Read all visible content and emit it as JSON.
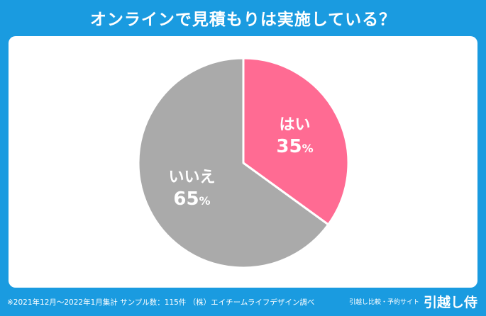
{
  "header": {
    "title": "オンラインで見積もりは実施している？"
  },
  "chart_data": {
    "type": "pie",
    "slices": [
      {
        "label": "はい",
        "value": 35,
        "display": "35",
        "unit": "%",
        "color": "#ff6b93"
      },
      {
        "label": "いいえ",
        "value": 65,
        "display": "65",
        "unit": "%",
        "color": "#aaaaaa"
      }
    ],
    "start": "top",
    "direction": "clockwise"
  },
  "footer": {
    "note": "※2021年12月～2022年1月集計 サンプル数：115件 （株）エイチームライフデザイン調べ",
    "brand_tagline": "引越し比較・予約サイト",
    "brand_name": "引越し侍"
  }
}
